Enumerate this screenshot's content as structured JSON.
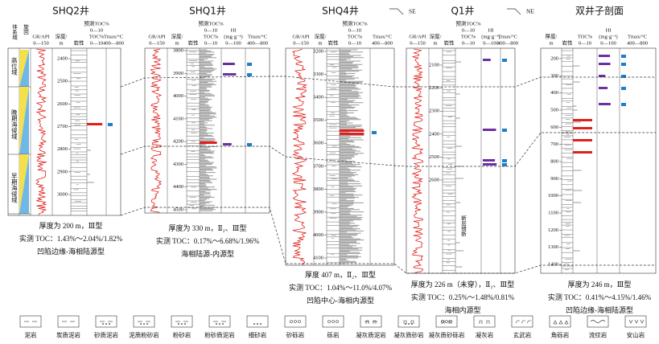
{
  "wells": [
    {
      "name": "SHQ2井",
      "columns": [
        [
          "体系域"
        ],
        [
          "旋回"
        ],
        [
          "GR/API",
          "0—150"
        ],
        [
          "深度/",
          "m"
        ],
        [
          "岩性"
        ],
        [
          "预测TOC%",
          "0—10",
          "TOC%",
          "0—10"
        ],
        [
          "Tmax/°C",
          "400—800"
        ]
      ],
      "depths": [
        2400,
        2500,
        2600,
        2700,
        2800,
        2900,
        3000
      ],
      "summary": [
        "厚度为 200 m，Ⅲ型",
        "实测 TOC：1.43%～2.04%/1.82%",
        "凹陷边缘-海相陆源型"
      ]
    },
    {
      "name": "SHQ1井",
      "columns": [
        [
          "GR/API",
          "0—150"
        ],
        [
          "深度/",
          "m"
        ],
        [
          "岩性"
        ],
        [
          "预测TOC%",
          "0—10",
          "TOC%",
          "0—10"
        ],
        [
          "HI",
          "(mg·g⁻¹)",
          "0—100"
        ],
        [
          "Tmax/°C",
          "400—800"
        ]
      ],
      "depths": [
        3800,
        3900,
        4000,
        4100,
        4200,
        4300,
        4400,
        4500
      ],
      "summary": [
        "厚度为 330 m，Ⅱ₂、Ⅲ型",
        "实测 TOC：0.17%～6.68%/1.96%",
        "海相陆源-内源型"
      ]
    },
    {
      "name": "SHQ4井",
      "columns": [
        [
          "GR/API",
          "0—150"
        ],
        [
          "深度/",
          "m"
        ],
        [
          "岩性"
        ],
        [
          "预测TOC%",
          "0—10",
          "TOC%",
          "0—10"
        ],
        [
          "Tmax/°C",
          "400—800"
        ]
      ],
      "depths": [
        3200,
        3300,
        3400,
        3500,
        3600,
        3700,
        3800,
        3900,
        4000,
        4100
      ],
      "summary": [
        "厚度 407 m，Ⅱ₂、Ⅲ型",
        "实测 TOC：1.04%～11.0%/4.07%",
        "凹陷中心-海相内源型"
      ]
    },
    {
      "name": "Q1井",
      "columns": [
        [
          "GR/API",
          "0—150"
        ],
        [
          "深度/",
          "m"
        ],
        [
          "岩性"
        ],
        [
          "预测TOC%",
          "0—10",
          "TOC%",
          "0—10"
        ],
        [
          "HI",
          "(mg·g⁻¹)",
          "0—100"
        ],
        [
          "Tmax/°C",
          "400—800"
        ]
      ],
      "depths": [
        2100,
        2200,
        2300,
        2400,
        2500,
        2600
      ],
      "summary": [
        "厚度为 226 m（未穿），Ⅱ₂、Ⅲ型",
        "实测 TOC：0.25%～1.48%/0.81%",
        "海相内源型"
      ]
    },
    {
      "name": "双井子剖面",
      "columns": [
        [
          "厚度/",
          "m"
        ],
        [
          "岩性"
        ],
        [
          "TOC%",
          "0—10"
        ],
        [
          "HI",
          "(mg·g⁻¹)",
          "0—100"
        ],
        [
          "Tmax/°C",
          "400—800"
        ]
      ],
      "depths": [
        200,
        300,
        400,
        500,
        600,
        700,
        800,
        900,
        1000,
        1100,
        1200,
        1300,
        1400
      ],
      "summary": [
        "厚度为 246 m，Ⅲ型",
        "实测 TOC：0.41%～4.15%/1.46%",
        "凹陷边缘-海相陆源型"
      ]
    }
  ],
  "system_tracts": [
    "高位域",
    "晚期海侵域",
    "早期海侵域"
  ],
  "directions": [
    "SE",
    "NE"
  ],
  "fault_note": "断层错断",
  "legend": [
    "泥岩",
    "炭质泥岩",
    "砂质泥岩",
    "泥质粉砂岩",
    "粉砂岩",
    "粉砂质泥岩",
    "细砂岩",
    "砂砾岩",
    "砾岩",
    "凝灰质泥岩",
    "凝灰质砂岩",
    "凝灰质砂砾岩",
    "凝灰岩",
    "玄武岩",
    "角砾岩",
    "流纹岩",
    "安山岩"
  ]
}
